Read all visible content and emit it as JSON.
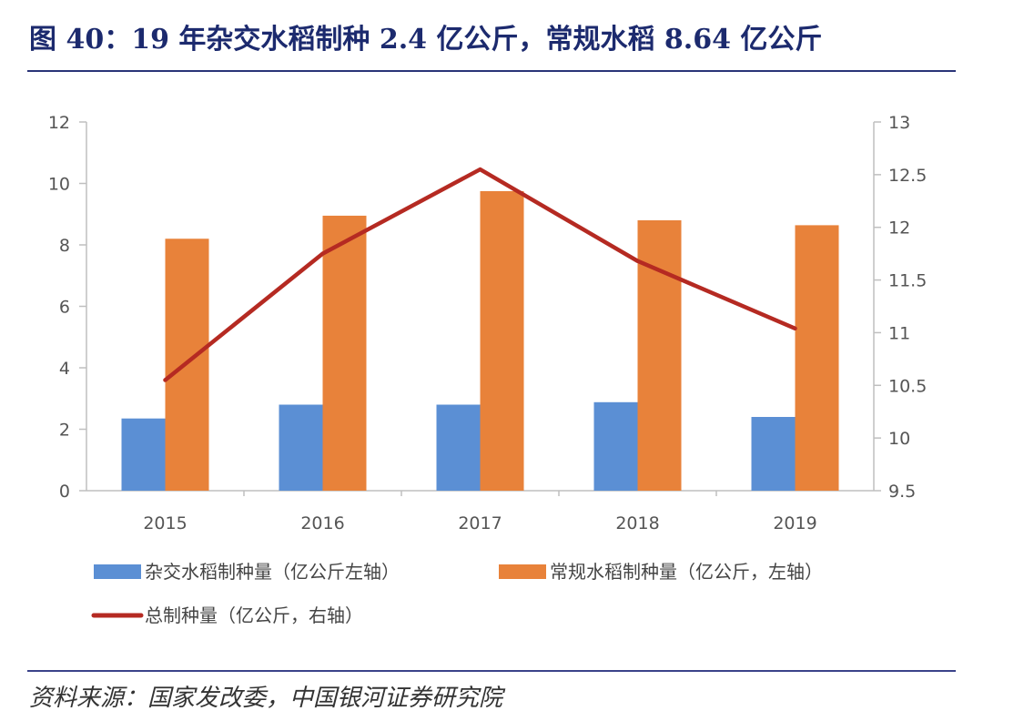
{
  "header": {
    "title": "图 40：19 年杂交水稻制种 2.4 亿公斤，常规水稻 8.64 亿公斤"
  },
  "footer": {
    "source": "资料来源：国家发改委，中国银河证券研究院"
  },
  "colors": {
    "hybrid": "#5b8fd4",
    "regular": "#e8823a",
    "total": "#b52a22",
    "title": "#1c2a6e",
    "axis": "#bfbfbf"
  },
  "chart_data": {
    "type": "bar",
    "categories": [
      "2015",
      "2016",
      "2017",
      "2018",
      "2019"
    ],
    "series": [
      {
        "name": "杂交水稻制种量（亿公斤左轴）",
        "axis": "left",
        "type": "bar",
        "values": [
          2.35,
          2.8,
          2.8,
          2.88,
          2.4
        ]
      },
      {
        "name": "常规水稻制种量（亿公斤，左轴）",
        "axis": "left",
        "type": "bar",
        "values": [
          8.2,
          8.95,
          9.75,
          8.8,
          8.64
        ]
      },
      {
        "name": "总制种量（亿公斤，右轴）",
        "axis": "right",
        "type": "line",
        "values": [
          10.55,
          11.75,
          12.55,
          11.68,
          11.04
        ]
      }
    ],
    "yleft": {
      "min": 0,
      "max": 12,
      "ticks": [
        "0",
        "2",
        "4",
        "6",
        "8",
        "10",
        "12"
      ]
    },
    "yright": {
      "min": 9.5,
      "max": 13,
      "ticks": [
        "9.5",
        "10",
        "10.5",
        "11",
        "11.5",
        "12",
        "12.5",
        "13"
      ]
    },
    "legend_position": "bottom",
    "grid": false
  }
}
